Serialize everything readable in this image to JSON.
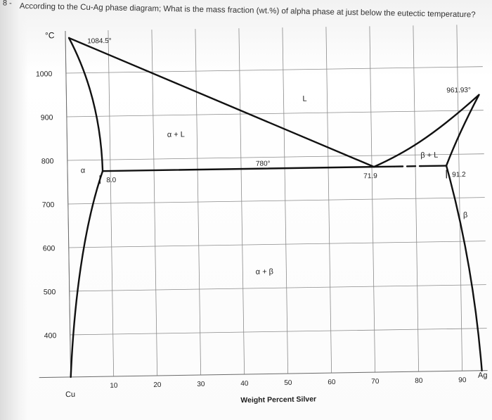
{
  "question": {
    "number": "8 -",
    "text": "According to the Cu-Ag phase diagram; What is the mass fraction (wt.%) of alpha phase at just below the eutectic temperature?"
  },
  "diagram": {
    "y_unit": "°C",
    "x_axis_title": "Weight Percent Silver",
    "x_ticks": [
      "10",
      "20",
      "30",
      "40",
      "50",
      "60",
      "70",
      "80",
      "90"
    ],
    "x_end_labels": {
      "left": "Cu",
      "right": "Ag"
    },
    "y_ticks": [
      "1000",
      "900",
      "800",
      "700",
      "600",
      "500",
      "400"
    ],
    "points": {
      "cu_melting": "1084.5°",
      "ag_melting": "961.93°",
      "eutectic_temp": "780°",
      "alpha_max_solubility": "8.0",
      "eutectic_composition": "71.9",
      "beta_max_solubility": "91.2"
    },
    "regions": {
      "liquid": "L",
      "alpha_plus_liquid": "α + L",
      "beta_plus_liquid": "β + L",
      "alpha": "α",
      "beta": "β",
      "alpha_plus_beta": "α + β"
    }
  }
}
